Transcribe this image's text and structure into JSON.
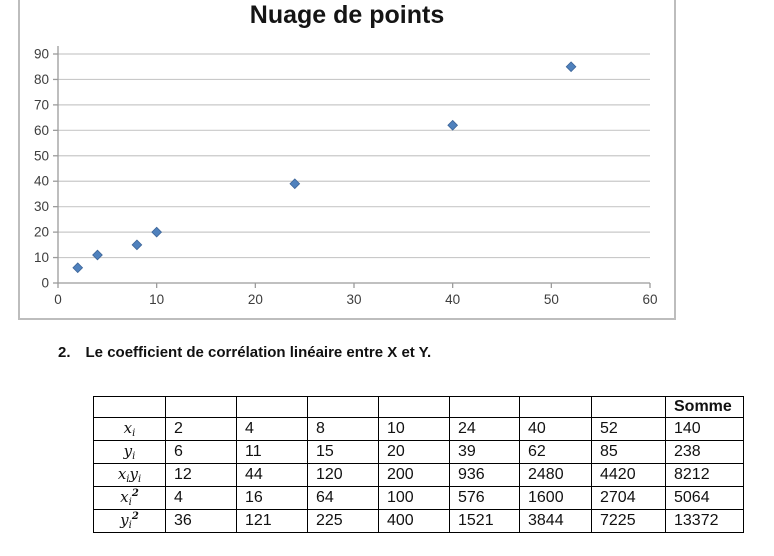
{
  "chart_data": {
    "type": "scatter",
    "title": "Nuage de points",
    "x": [
      2,
      4,
      8,
      10,
      24,
      40,
      52
    ],
    "y": [
      6,
      11,
      15,
      20,
      39,
      62,
      85
    ],
    "xlim": [
      0,
      60
    ],
    "ylim": [
      0,
      90
    ],
    "x_ticks": [
      "0",
      "10",
      "20",
      "30",
      "40",
      "50",
      "60"
    ],
    "y_ticks": [
      "0",
      "10",
      "20",
      "30",
      "40",
      "50",
      "60",
      "70",
      "80",
      "90"
    ],
    "xlabel": "",
    "ylabel": "",
    "grid": "horizontal",
    "legend": "none",
    "marker": "diamond",
    "marker_color": "#4F81BD",
    "marker_edge_color": "#3C6497",
    "gridline_color": "#c9c9c9",
    "axis_color": "#9b9b9b",
    "chart_border_color": "#bdbdbd"
  },
  "heading": {
    "number": "2.",
    "text": "Le coefficient de corrélation linéaire entre X et Y."
  },
  "table": {
    "header_last": "Somme",
    "rows": [
      {
        "label": [
          {
            "v": "x",
            "sub": "i"
          }
        ],
        "values": [
          "2",
          "4",
          "8",
          "10",
          "24",
          "40",
          "52"
        ],
        "sum": "140"
      },
      {
        "label": [
          {
            "v": "y",
            "sub": "i"
          }
        ],
        "values": [
          "6",
          "11",
          "15",
          "20",
          "39",
          "62",
          "85"
        ],
        "sum": "238"
      },
      {
        "label": [
          {
            "v": "x",
            "sub": "i"
          },
          {
            "v": "y",
            "sub": "i"
          }
        ],
        "values": [
          "12",
          "44",
          "120",
          "200",
          "936",
          "2480",
          "4420"
        ],
        "sum": "8212"
      },
      {
        "label": [
          {
            "v": "x",
            "sub": "i",
            "sup": "2"
          }
        ],
        "values": [
          "4",
          "16",
          "64",
          "100",
          "576",
          "1600",
          "2704"
        ],
        "sum": "5064"
      },
      {
        "label": [
          {
            "v": "y",
            "sub": "i",
            "sup": "2"
          }
        ],
        "values": [
          "36",
          "121",
          "225",
          "400",
          "1521",
          "3844",
          "7225"
        ],
        "sum": "13372"
      }
    ]
  }
}
